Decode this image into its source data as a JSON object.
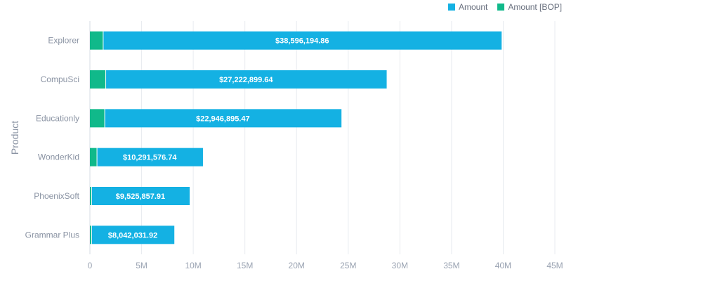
{
  "chart_data": {
    "type": "bar",
    "orientation": "horizontal",
    "stacked": true,
    "title": "",
    "xlabel": "",
    "ylabel": "Product",
    "categories": [
      "Explorer",
      "CompuSci",
      "Educationly",
      "WonderKid",
      "PhoenixSoft",
      "Grammar Plus"
    ],
    "series": [
      {
        "name": "Amount [BOP]",
        "color": "#10b98a",
        "values": [
          1250000,
          1500000,
          1400000,
          650000,
          130000,
          130000
        ]
      },
      {
        "name": "Amount",
        "color": "#14b1e3",
        "values": [
          38596194.86,
          27222899.64,
          22946895.47,
          10291576.74,
          9525857.91,
          8042031.92
        ],
        "labels": [
          "$38,596,194.86",
          "$27,222,899.64",
          "$22,946,895.47",
          "$10,291,576.74",
          "$9,525,857.91",
          "$8,042,031.92"
        ]
      }
    ],
    "xlim": [
      0,
      45000000
    ],
    "xticks": [
      0,
      5000000,
      10000000,
      15000000,
      20000000,
      25000000,
      30000000,
      35000000,
      40000000,
      45000000
    ],
    "xtick_labels": [
      "0",
      "5M",
      "10M",
      "15M",
      "20M",
      "25M",
      "30M",
      "35M",
      "40M",
      "45M"
    ],
    "grid": true,
    "legend_position": "top-right"
  },
  "legend": [
    {
      "label": "Amount",
      "color": "#14b1e3"
    },
    {
      "label": "Amount [BOP]",
      "color": "#10b98a"
    }
  ]
}
